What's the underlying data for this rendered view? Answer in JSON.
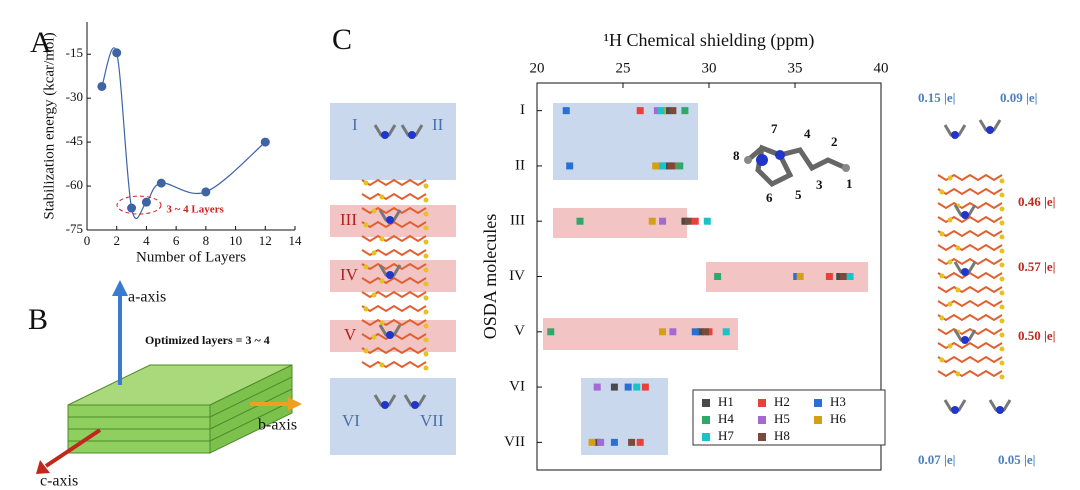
{
  "figure": {
    "panel_labels": [
      "A",
      "B",
      "C"
    ]
  },
  "chart_data": [
    {
      "type": "scatter",
      "xlabel": "Number of Layers",
      "ylabel": "Stabilization energy (kcar/mol)",
      "x": [
        1,
        2,
        3,
        4,
        5,
        8,
        12
      ],
      "values": [
        -26,
        -14.5,
        -67.5,
        -65.5,
        -59,
        -62,
        -45
      ],
      "color": "#3f64a4",
      "xlim": [
        0,
        14
      ],
      "xticks": [
        0,
        2,
        4,
        6,
        8,
        10,
        12,
        14
      ],
      "ylim": [
        -75,
        -4
      ],
      "yticks": [
        -75,
        -60,
        -45,
        -30,
        -15
      ],
      "annotation": "3 ~ 4 Layers",
      "fit_curve": true
    },
    {
      "type": "dot",
      "xlabel": "¹H Chemical shielding (ppm)",
      "ylabel": "OSDA molecules",
      "categories": [
        "I",
        "II",
        "III",
        "IV",
        "V",
        "VI",
        "VII"
      ],
      "xlim": [
        20,
        40
      ],
      "xticks": [
        20,
        25,
        30,
        35,
        40
      ],
      "legend": "lower right",
      "series": [
        {
          "name": "H1",
          "color": "#4a4a4a",
          "values": [
            27.6,
            27.6,
            28.6,
            37.6,
            29.5,
            24.5,
            23.5
          ]
        },
        {
          "name": "H2",
          "color": "#e8413c",
          "values": [
            26.0,
            27.9,
            29.2,
            37.0,
            30.0,
            26.3,
            26.0
          ]
        },
        {
          "name": "H3",
          "color": "#2a6fd6",
          "values": [
            21.7,
            21.9,
            null,
            35.1,
            29.2,
            25.3,
            24.5
          ]
        },
        {
          "name": "H4",
          "color": "#2fa86b",
          "values": [
            28.6,
            28.3,
            22.5,
            30.5,
            20.8,
            null,
            null
          ]
        },
        {
          "name": "H5",
          "color": "#a569d6",
          "values": [
            27.0,
            27.2,
            27.3,
            null,
            27.9,
            23.5,
            23.7
          ]
        },
        {
          "name": "H6",
          "color": "#d4a017",
          "values": [
            27.3,
            26.9,
            26.7,
            35.3,
            27.3,
            null,
            23.2
          ]
        },
        {
          "name": "H7",
          "color": "#19c3c8",
          "values": [
            27.2,
            27.3,
            29.9,
            38.2,
            31.0,
            25.8,
            null
          ]
        },
        {
          "name": "H8",
          "color": "#7b4a3a",
          "values": [
            27.9,
            27.8,
            28.8,
            37.8,
            29.8,
            null,
            25.5
          ]
        }
      ]
    }
  ],
  "layers_diagram": {
    "title": "Optimized layers = 3 ~ 4",
    "axes": [
      "a-axis",
      "b-axis",
      "c-axis"
    ]
  },
  "structure": {
    "labels": [
      "I",
      "II",
      "III",
      "IV",
      "V",
      "VI",
      "VII"
    ],
    "charges": [
      "0.15 |e|",
      "0.09 |e|",
      "0.46 |e|",
      "0.57 |e|",
      "0.50 |e|",
      "0.07 |e|",
      "0.05 |e|"
    ]
  },
  "molecule": {
    "atom_labels": [
      "1",
      "2",
      "3",
      "4",
      "5",
      "6",
      "7",
      "8"
    ]
  }
}
